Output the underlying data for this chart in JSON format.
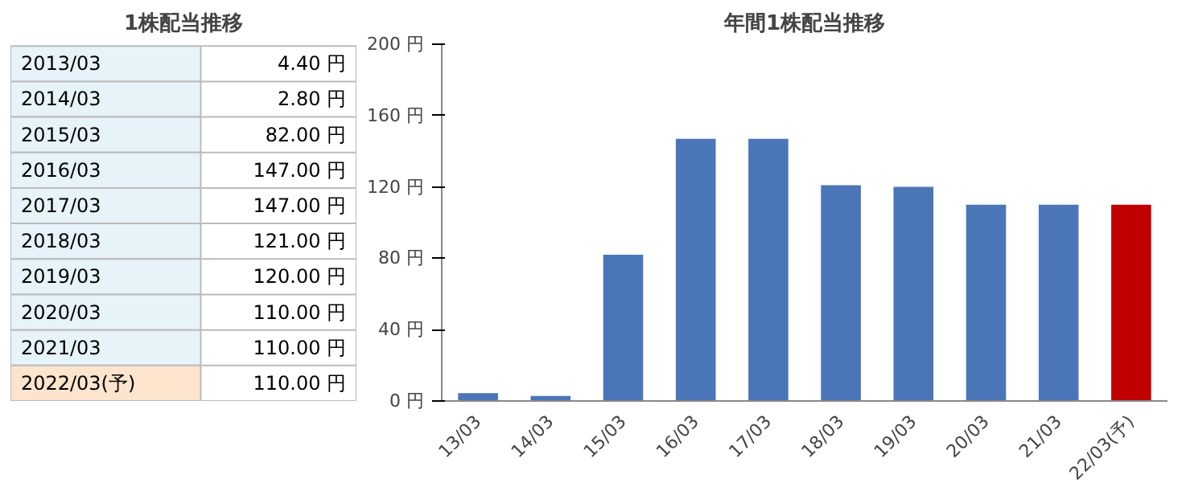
{
  "chart_data": [
    {
      "type": "other",
      "title": "1株配当推移",
      "categories": [
        "2013/03",
        "2014/03",
        "2015/03",
        "2016/03",
        "2017/03",
        "2018/03",
        "2019/03",
        "2020/03",
        "2021/03",
        "2022/03(予)"
      ],
      "values": [
        4.4,
        2.8,
        82,
        147,
        147,
        121,
        120,
        110,
        110,
        110
      ],
      "value_labels": [
        "4.40 円",
        "2.80 円",
        "82.00 円",
        "147.00 円",
        "147.00 円",
        "121.00 円",
        "120.00 円",
        "110.00 円",
        "110.00 円",
        "110.00 円"
      ],
      "colors": [
        "#e6f3f8",
        "#e6f3f8",
        "#e6f3f8",
        "#e6f3f8",
        "#e6f3f8",
        "#e6f3f8",
        "#e6f3f8",
        "#e6f3f8",
        "#e6f3f8",
        "#fde4cc"
      ]
    },
    {
      "type": "bar",
      "title": "年間1株配当推移",
      "categories": [
        "13/03",
        "14/03",
        "15/03",
        "16/03",
        "17/03",
        "18/03",
        "19/03",
        "20/03",
        "21/03",
        "22/03(予)"
      ],
      "values": [
        4.4,
        2.8,
        82,
        147,
        147,
        121,
        120,
        110,
        110,
        110
      ],
      "colors": [
        "#4a76b8",
        "#4a76b8",
        "#4a76b8",
        "#4a76b8",
        "#4a76b8",
        "#4a76b8",
        "#4a76b8",
        "#4a76b8",
        "#4a76b8",
        "#c00000"
      ],
      "ylim": [
        0,
        200
      ],
      "yticks": [
        {
          "value": 0,
          "label": "0 円"
        },
        {
          "value": 40,
          "label": "40 円"
        },
        {
          "value": 80,
          "label": "80 円"
        },
        {
          "value": 120,
          "label": "120 円"
        },
        {
          "value": 160,
          "label": "160 円"
        },
        {
          "value": 200,
          "label": "200 円"
        }
      ],
      "grid": false
    }
  ]
}
